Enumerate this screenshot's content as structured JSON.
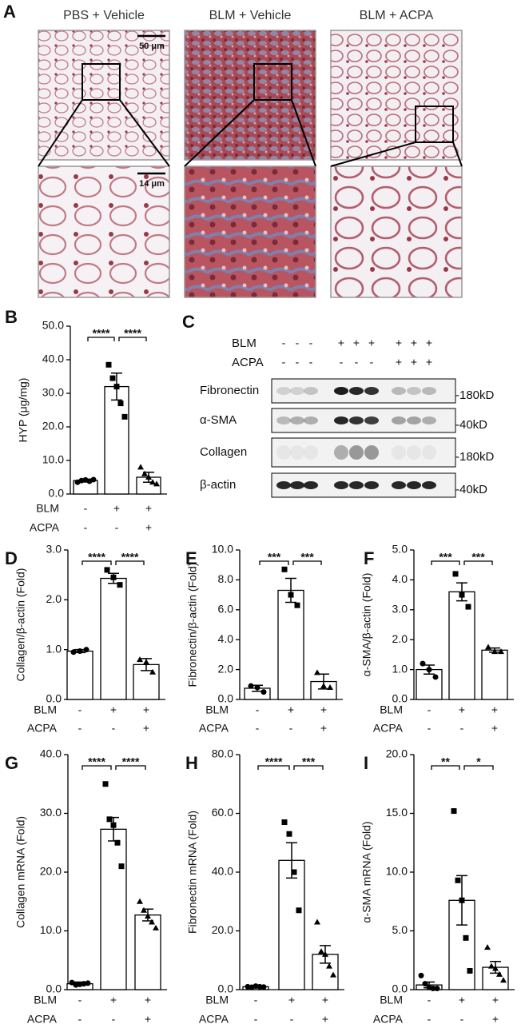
{
  "image_panel": {
    "letter": "A",
    "titles": [
      "PBS + Vehicle",
      "BLM + Vehicle",
      "BLM + ACPA"
    ],
    "scale_bars": [
      "50 μm",
      "14 μm"
    ]
  },
  "blot": {
    "letter": "C",
    "treatments": [
      {
        "name": "BLM",
        "signs": [
          "-",
          "-",
          "-",
          "+",
          "+",
          "+",
          "+",
          "+",
          "+"
        ]
      },
      {
        "name": "ACPA",
        "signs": [
          "-",
          "-",
          "-",
          "-",
          "-",
          "-",
          "+",
          "+",
          "+"
        ]
      }
    ],
    "proteins": [
      {
        "name": "Fibronectin",
        "size": "-180kD"
      },
      {
        "name": "α-SMA",
        "size": "-40kD"
      },
      {
        "name": "Collagen",
        "size": "-180kD"
      },
      {
        "name": "β-actin",
        "size": "-40kD"
      }
    ]
  },
  "chart_data": [
    {
      "type": "bar",
      "panel": "B",
      "ylabel": "HYP (μg/mg)",
      "ylim": [
        0,
        50
      ],
      "yticks": [
        {
          "value": 0,
          "label": "0.0"
        },
        {
          "value": 10,
          "label": "10.0"
        },
        {
          "value": 20,
          "label": "20.0"
        },
        {
          "value": 30,
          "label": "30.0"
        },
        {
          "value": 40,
          "label": "40.0"
        },
        {
          "value": 50,
          "label": "50.0"
        }
      ],
      "conditions": [
        {
          "name": "BLM",
          "signs": [
            "-",
            "+",
            "+"
          ]
        },
        {
          "name": "ACPA",
          "signs": [
            "-",
            "-",
            "+"
          ]
        }
      ],
      "values": [
        4,
        32,
        5
      ],
      "errors": [
        0.4,
        4,
        1.5
      ],
      "points": [
        [
          3.5,
          4,
          4.2,
          3.8,
          4.3
        ],
        [
          38.5,
          34.5,
          32,
          27,
          23
        ],
        [
          8,
          6,
          5,
          3.5,
          3
        ]
      ],
      "markers": [
        "circle",
        "square",
        "triangle"
      ],
      "significance": [
        {
          "pair": [
            0,
            1
          ],
          "label": "****"
        },
        {
          "pair": [
            1,
            2
          ],
          "label": "****"
        }
      ]
    },
    {
      "type": "bar",
      "panel": "D",
      "ylabel": "Collagen/β-actin (Fold)",
      "ylim": [
        0,
        3
      ],
      "yticks": [
        {
          "value": 0,
          "label": "0.0"
        },
        {
          "value": 1,
          "label": "1.0"
        },
        {
          "value": 2,
          "label": "2.0"
        },
        {
          "value": 3,
          "label": "3.0"
        }
      ],
      "conditions": [
        {
          "name": "BLM",
          "signs": [
            "-",
            "+",
            "+"
          ]
        },
        {
          "name": "ACPA",
          "signs": [
            "-",
            "-",
            "+"
          ]
        }
      ],
      "values": [
        0.97,
        2.43,
        0.7
      ],
      "errors": [
        0.03,
        0.1,
        0.12
      ],
      "points": [
        [
          0.95,
          0.97,
          1.0
        ],
        [
          2.6,
          2.45,
          2.3
        ],
        [
          0.8,
          0.75,
          0.55
        ]
      ],
      "markers": [
        "circle",
        "square",
        "triangle"
      ],
      "significance": [
        {
          "pair": [
            0,
            1
          ],
          "label": "****"
        },
        {
          "pair": [
            1,
            2
          ],
          "label": "****"
        }
      ]
    },
    {
      "type": "bar",
      "panel": "E",
      "ylabel": "Fibronectin/β-actin (Fold)",
      "ylim": [
        0,
        10
      ],
      "yticks": [
        {
          "value": 0,
          "label": "0.0"
        },
        {
          "value": 2,
          "label": "2.0"
        },
        {
          "value": 4,
          "label": "4.0"
        },
        {
          "value": 6,
          "label": "6.0"
        },
        {
          "value": 8,
          "label": "8.0"
        },
        {
          "value": 10,
          "label": "10.0"
        }
      ],
      "conditions": [
        {
          "name": "BLM",
          "signs": [
            "-",
            "+",
            "+"
          ]
        },
        {
          "name": "ACPA",
          "signs": [
            "-",
            "-",
            "+"
          ]
        }
      ],
      "values": [
        0.75,
        7.3,
        1.2
      ],
      "errors": [
        0.2,
        0.8,
        0.5
      ],
      "points": [
        [
          0.9,
          0.8,
          0.5
        ],
        [
          8.7,
          7.0,
          6.3
        ],
        [
          1.8,
          0.9,
          0.8
        ]
      ],
      "markers": [
        "circle",
        "square",
        "triangle"
      ],
      "significance": [
        {
          "pair": [
            0,
            1
          ],
          "label": "***"
        },
        {
          "pair": [
            1,
            2
          ],
          "label": "***"
        }
      ]
    },
    {
      "type": "bar",
      "panel": "F",
      "ylabel": "α-SMA/β-actin (Fold)",
      "ylim": [
        0,
        5
      ],
      "yticks": [
        {
          "value": 0,
          "label": "0.0"
        },
        {
          "value": 1,
          "label": "1.0"
        },
        {
          "value": 2,
          "label": "2.0"
        },
        {
          "value": 3,
          "label": "3.0"
        },
        {
          "value": 4,
          "label": "4.0"
        },
        {
          "value": 5,
          "label": "5.0"
        }
      ],
      "conditions": [
        {
          "name": "BLM",
          "signs": [
            "-",
            "+",
            "+"
          ]
        },
        {
          "name": "ACPA",
          "signs": [
            "-",
            "-",
            "+"
          ]
        }
      ],
      "values": [
        1.0,
        3.6,
        1.65
      ],
      "errors": [
        0.15,
        0.3,
        0.07
      ],
      "points": [
        [
          1.2,
          1.0,
          0.75
        ],
        [
          4.2,
          3.5,
          3.1
        ],
        [
          1.75,
          1.6,
          1.6
        ]
      ],
      "markers": [
        "circle",
        "square",
        "triangle"
      ],
      "significance": [
        {
          "pair": [
            0,
            1
          ],
          "label": "***"
        },
        {
          "pair": [
            1,
            2
          ],
          "label": "***"
        }
      ]
    },
    {
      "type": "bar",
      "panel": "G",
      "ylabel": "Collagen mRNA (Fold)",
      "ylim": [
        0,
        40
      ],
      "yticks": [
        {
          "value": 0,
          "label": "0.0"
        },
        {
          "value": 10,
          "label": "10.0"
        },
        {
          "value": 20,
          "label": "20.0"
        },
        {
          "value": 30,
          "label": "30.0"
        },
        {
          "value": 40,
          "label": "40.0"
        }
      ],
      "conditions": [
        {
          "name": "BLM",
          "signs": [
            "-",
            "+",
            "+"
          ]
        },
        {
          "name": "ACPA",
          "signs": [
            "-",
            "-",
            "+"
          ]
        }
      ],
      "values": [
        1,
        27.3,
        12.7
      ],
      "errors": [
        0.3,
        2,
        1
      ],
      "points": [
        [
          1.2,
          0.8,
          0.9,
          1,
          1.1
        ],
        [
          35,
          29,
          28,
          25,
          21
        ],
        [
          15,
          13.5,
          12.5,
          11.5,
          10.5
        ]
      ],
      "markers": [
        "circle",
        "square",
        "triangle"
      ],
      "significance": [
        {
          "pair": [
            0,
            1
          ],
          "label": "****"
        },
        {
          "pair": [
            1,
            2
          ],
          "label": "****"
        }
      ]
    },
    {
      "type": "bar",
      "panel": "H",
      "ylabel": "Fibronectin mRNA (Fold)",
      "ylim": [
        0,
        80
      ],
      "yticks": [
        {
          "value": 0,
          "label": "0.0"
        },
        {
          "value": 20,
          "label": "20.0"
        },
        {
          "value": 40,
          "label": "40.0"
        },
        {
          "value": 60,
          "label": "60.0"
        },
        {
          "value": 80,
          "label": "80.0"
        }
      ],
      "conditions": [
        {
          "name": "BLM",
          "signs": [
            "-",
            "+",
            "+"
          ]
        },
        {
          "name": "ACPA",
          "signs": [
            "-",
            "-",
            "+"
          ]
        }
      ],
      "values": [
        1,
        44,
        12
      ],
      "errors": [
        0.3,
        6,
        3
      ],
      "points": [
        [
          1,
          0.8,
          1.2,
          1,
          0.9
        ],
        [
          57,
          53,
          40,
          27
        ],
        [
          23,
          13,
          12,
          8,
          5
        ]
      ],
      "markers": [
        "circle",
        "square",
        "triangle"
      ],
      "significance": [
        {
          "pair": [
            0,
            1
          ],
          "label": "****"
        },
        {
          "pair": [
            1,
            2
          ],
          "label": "***"
        }
      ]
    },
    {
      "type": "bar",
      "panel": "I",
      "ylabel": "α-SMA mRNA (Fold)",
      "ylim": [
        0,
        20
      ],
      "yticks": [
        {
          "value": 0,
          "label": "0.0"
        },
        {
          "value": 5,
          "label": "5.0"
        },
        {
          "value": 10,
          "label": "10.0"
        },
        {
          "value": 15,
          "label": "15.0"
        },
        {
          "value": 20,
          "label": "20.0"
        }
      ],
      "conditions": [
        {
          "name": "BLM",
          "signs": [
            "-",
            "+",
            "+"
          ]
        },
        {
          "name": "ACPA",
          "signs": [
            "-",
            "-",
            "+"
          ]
        }
      ],
      "values": [
        0.4,
        7.6,
        1.9
      ],
      "errors": [
        0.25,
        2.1,
        0.5
      ],
      "points": [
        [
          1.2,
          0.5,
          0.2,
          0.1,
          0.1
        ],
        [
          15.2,
          9.3,
          7.6,
          4.4,
          1.6
        ],
        [
          3.6,
          2.0,
          1.8,
          1.3,
          0.8
        ]
      ],
      "markers": [
        "circle",
        "square",
        "triangle"
      ],
      "significance": [
        {
          "pair": [
            0,
            1
          ],
          "label": "**"
        },
        {
          "pair": [
            1,
            2
          ],
          "label": "*"
        }
      ]
    }
  ]
}
